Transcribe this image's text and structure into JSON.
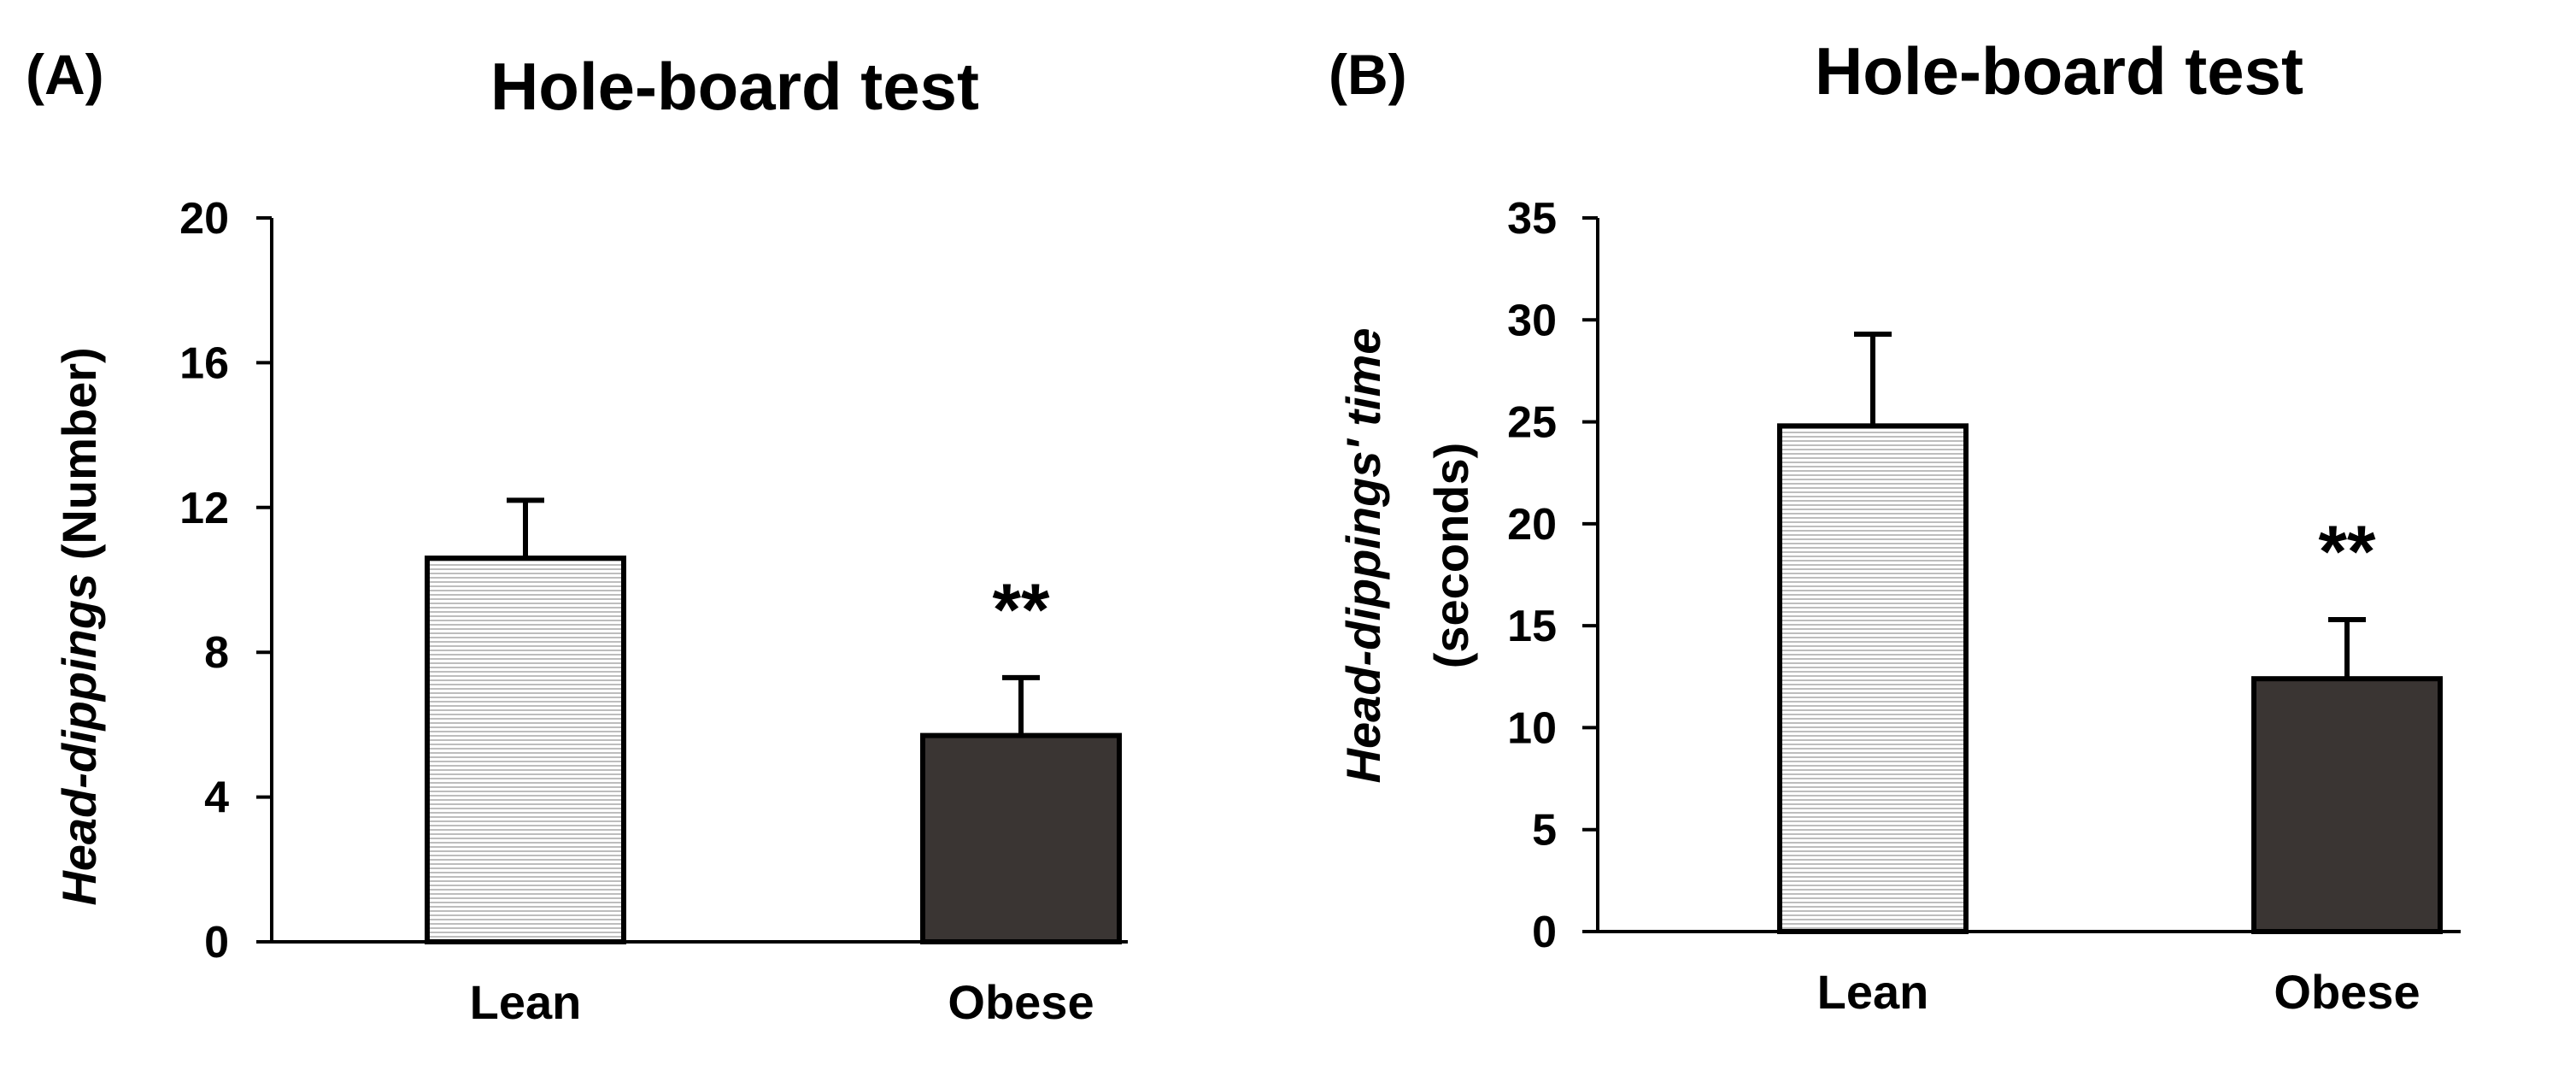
{
  "chart_data": [
    {
      "type": "bar",
      "panel_label": "(A)",
      "title": "Hole-board test",
      "ylabel_italic": "Head-dippings",
      "ylabel_rest": " (Number)",
      "xlabel": "",
      "categories": [
        "Lean",
        "Obese"
      ],
      "values": [
        10.6,
        5.7
      ],
      "errors": [
        1.6,
        1.6
      ],
      "significance": [
        "",
        "**"
      ],
      "ylim": [
        0,
        20
      ],
      "yticks": [
        0,
        4,
        8,
        12,
        16,
        20
      ],
      "colors": {
        "lean": "striped-light-gray",
        "obese": "#3a3533",
        "stripe": "#c9c9c9"
      }
    },
    {
      "type": "bar",
      "panel_label": "(B)",
      "title": "Hole-board test",
      "ylabel_italic": "Head-dippings' time",
      "ylabel_rest": "(seconds)",
      "xlabel": "",
      "categories": [
        "Lean",
        "Obese"
      ],
      "values": [
        24.8,
        12.4
      ],
      "errors": [
        4.5,
        2.9
      ],
      "significance": [
        "",
        "**"
      ],
      "ylim": [
        0,
        35
      ],
      "yticks": [
        0,
        5,
        10,
        15,
        20,
        25,
        30,
        35
      ],
      "colors": {
        "lean": "striped-light-gray",
        "obese": "#3a3533",
        "stripe": "#c9c9c9"
      }
    }
  ]
}
